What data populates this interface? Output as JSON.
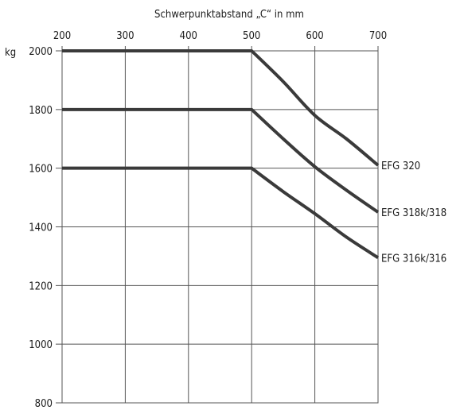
{
  "chart_data": {
    "type": "line",
    "title": "Schwerpunktabstand „C“ in mm",
    "xlabel": "Schwerpunktabstand „C“ in mm",
    "ylabel": "kg",
    "xlim": [
      200,
      700
    ],
    "ylim": [
      800,
      2000
    ],
    "x_ticks": [
      200,
      300,
      400,
      500,
      600,
      700
    ],
    "y_ticks": [
      800,
      1000,
      1200,
      1400,
      1600,
      1800,
      2000
    ],
    "x_axis_position": "top",
    "grid": true,
    "series": [
      {
        "name": "EFG 320",
        "x": [
          200,
          500,
          550,
          600,
          650,
          700
        ],
        "y": [
          2000,
          2000,
          1895,
          1780,
          1700,
          1610
        ]
      },
      {
        "name": "EFG 318k/318",
        "x": [
          200,
          500,
          550,
          600,
          650,
          700
        ],
        "y": [
          1800,
          1800,
          1700,
          1605,
          1525,
          1450
        ]
      },
      {
        "name": "EFG 316k/316",
        "x": [
          200,
          500,
          550,
          600,
          650,
          700
        ],
        "y": [
          1600,
          1600,
          1520,
          1445,
          1365,
          1295
        ]
      }
    ]
  },
  "colors": {
    "series": "#3a3a3a",
    "grid": "#555555"
  }
}
